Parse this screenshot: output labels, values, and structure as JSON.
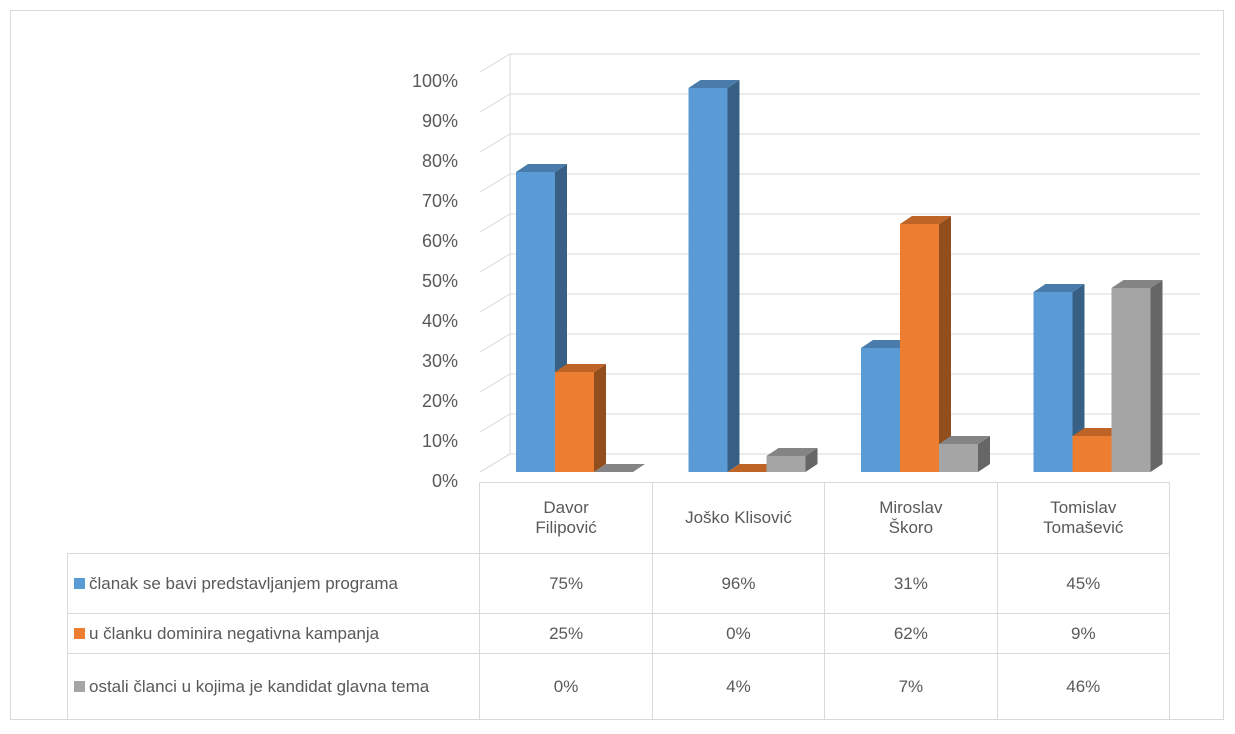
{
  "chart_data": {
    "type": "bar3d",
    "categories": [
      "Davor Filipović",
      "Joško Klisović",
      "Miroslav Škoro",
      "Tomislav Tomašević"
    ],
    "series": [
      {
        "name": "članak se bavi predstavljanjem programa",
        "color": "#5b9bd5",
        "values": [
          75,
          96,
          31,
          45
        ],
        "value_labels": [
          "75%",
          "96%",
          "31%",
          "45%"
        ]
      },
      {
        "name": "u članku dominira negativna kampanja",
        "color": "#ed7d31",
        "values": [
          25,
          0,
          62,
          9
        ],
        "value_labels": [
          "25%",
          "0%",
          "62%",
          "9%"
        ]
      },
      {
        "name": "ostali članci u kojima je kandidat glavna tema",
        "color": "#a5a5a5",
        "values": [
          0,
          4,
          7,
          46
        ],
        "value_labels": [
          "0%",
          "4%",
          "7%",
          "46%"
        ]
      }
    ],
    "ylim": [
      0,
      100
    ],
    "yticks": [
      {
        "value": 0,
        "label": "0%"
      },
      {
        "value": 10,
        "label": "10%"
      },
      {
        "value": 20,
        "label": "20%"
      },
      {
        "value": 30,
        "label": "30%"
      },
      {
        "value": 40,
        "label": "40%"
      },
      {
        "value": 50,
        "label": "50%"
      },
      {
        "value": 60,
        "label": "60%"
      },
      {
        "value": 70,
        "label": "70%"
      },
      {
        "value": 80,
        "label": "80%"
      },
      {
        "value": 90,
        "label": "90%"
      },
      {
        "value": 100,
        "label": "100%"
      }
    ],
    "grid": true
  }
}
